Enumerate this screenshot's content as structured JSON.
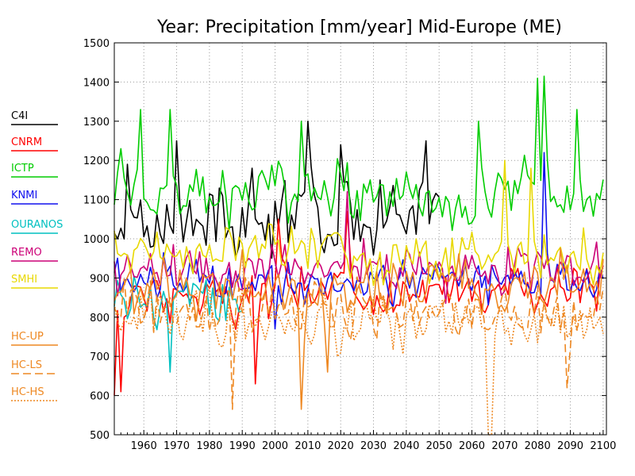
{
  "chart_data": {
    "type": "line",
    "title": "Year: Precipitation [mm/year] Mid-Europe (ME)",
    "xlabel": "",
    "ylabel": "",
    "xlim": [
      1951,
      2101
    ],
    "ylim": [
      500,
      1500
    ],
    "xticks": [
      1960,
      1970,
      1980,
      1990,
      2000,
      2010,
      2020,
      2030,
      2040,
      2050,
      2060,
      2070,
      2080,
      2090,
      2100
    ],
    "yticks": [
      500,
      600,
      700,
      800,
      900,
      1000,
      1100,
      1200,
      1300,
      1400,
      1500
    ],
    "grid": true,
    "legend_position": "left",
    "series": [
      {
        "name": "C4I",
        "color": "#000000",
        "dash": "solid",
        "start": 1951,
        "end": 2050,
        "mean": 1050,
        "amp": 90,
        "anchors": [
          [
            1952,
            1000
          ],
          [
            1955,
            1190
          ],
          [
            1970,
            1250
          ],
          [
            1993,
            1180
          ],
          [
            2010,
            1300
          ],
          [
            2020,
            1240
          ],
          [
            2032,
            1150
          ],
          [
            2046,
            1250
          ]
        ]
      },
      {
        "name": "CNRM",
        "color": "#ff0000",
        "dash": "solid",
        "start": 1951,
        "end": 2100,
        "mean": 860,
        "amp": 70,
        "anchors": [
          [
            1951,
            600
          ],
          [
            1953,
            610
          ],
          [
            1994,
            630
          ],
          [
            2001,
            1050
          ],
          [
            2022,
            1070
          ]
        ]
      },
      {
        "name": "ICTP",
        "color": "#00cc00",
        "dash": "solid",
        "start": 1951,
        "end": 2100,
        "mean": 1110,
        "amp": 80,
        "anchors": [
          [
            1953,
            1230
          ],
          [
            1959,
            1330
          ],
          [
            1968,
            1330
          ],
          [
            2008,
            1300
          ],
          [
            2062,
            1300
          ],
          [
            2080,
            1410
          ],
          [
            2082,
            1415
          ],
          [
            2092,
            1330
          ]
        ]
      },
      {
        "name": "KNMI",
        "color": "#1010ee",
        "dash": "solid",
        "start": 1951,
        "end": 2100,
        "mean": 900,
        "amp": 60,
        "anchors": [
          [
            2082,
            1220
          ],
          [
            2000,
            770
          ]
        ]
      },
      {
        "name": "OURANOS",
        "color": "#00c0c0",
        "dash": "solid",
        "start": 1951,
        "end": 1990,
        "mean": 840,
        "amp": 70,
        "anchors": [
          [
            1968,
            660
          ]
        ]
      },
      {
        "name": "REMO",
        "color": "#cc0077",
        "dash": "solid",
        "start": 1951,
        "end": 2100,
        "mean": 920,
        "amp": 65,
        "anchors": [
          [
            2022,
            1120
          ]
        ]
      },
      {
        "name": "SMHI",
        "color": "#e8d800",
        "dash": "solid",
        "start": 1951,
        "end": 2100,
        "mean": 960,
        "amp": 70,
        "anchors": [
          [
            2070,
            1200
          ],
          [
            2078,
            1180
          ]
        ]
      },
      {
        "name": "HC-UP",
        "color": "#ee8822",
        "dash": "solid",
        "start": 1951,
        "end": 2100,
        "mean": 880,
        "amp": 80,
        "anchors": [
          [
            2008,
            565
          ],
          [
            2016,
            660
          ]
        ]
      },
      {
        "name": "HC-LS",
        "color": "#ee8822",
        "dash": "10,5",
        "start": 1951,
        "end": 2100,
        "mean": 820,
        "amp": 80,
        "anchors": [
          [
            1987,
            565
          ],
          [
            2089,
            620
          ]
        ]
      },
      {
        "name": "HC-HS",
        "color": "#ee8822",
        "dash": "2,2",
        "start": 1951,
        "end": 2100,
        "mean": 790,
        "amp": 80,
        "anchors": [
          [
            2065,
            500
          ],
          [
            2066,
            500
          ]
        ]
      }
    ]
  }
}
